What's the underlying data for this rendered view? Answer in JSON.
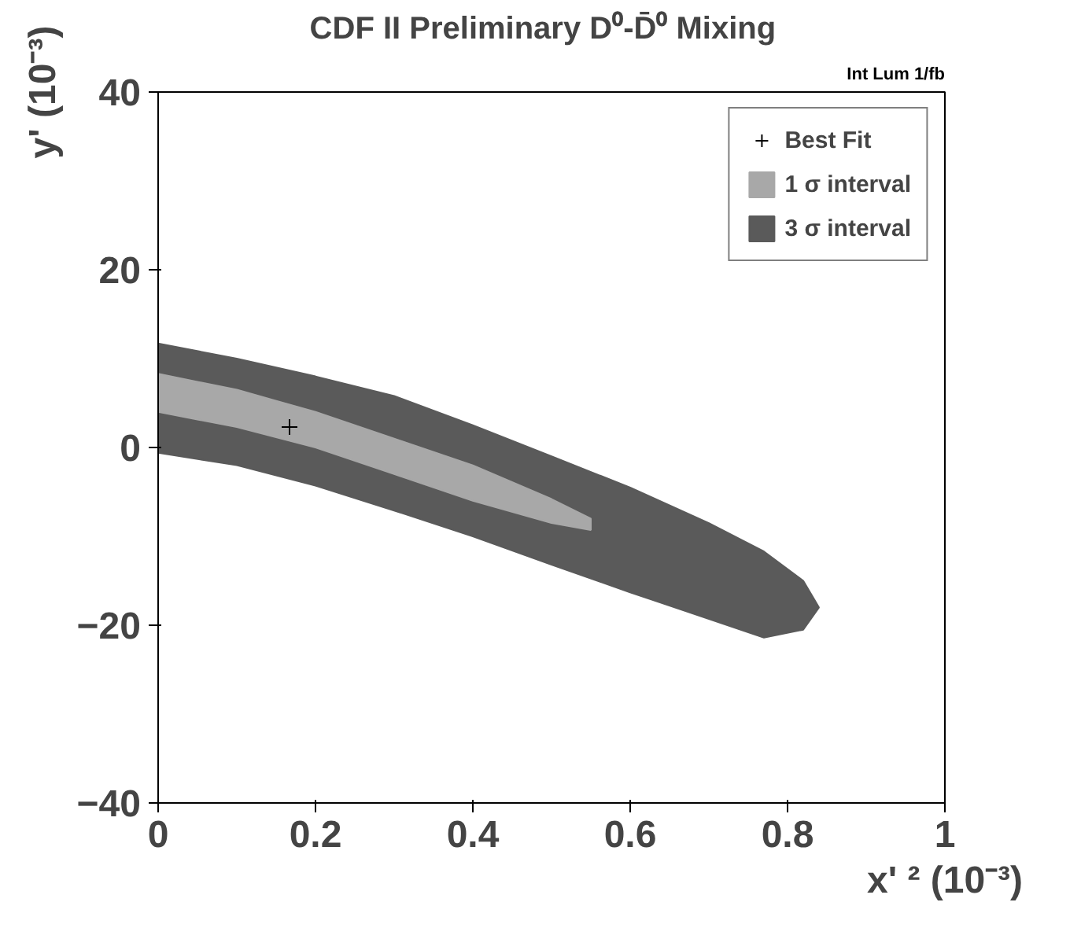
{
  "chart_data": {
    "type": "area",
    "title": "CDF II Preliminary   D⁰-D̄⁰ Mixing",
    "xlabel": "x' ² (10⁻³)",
    "ylabel": "y' (10⁻³)",
    "annotations": [
      "Int Lum 1/fb"
    ],
    "xlim": [
      0,
      1
    ],
    "ylim": [
      -40,
      40
    ],
    "xticks": [
      0,
      0.2,
      0.4,
      0.6,
      0.8,
      1
    ],
    "yticks": [
      -40,
      -20,
      0,
      20,
      40
    ],
    "grid": false,
    "legend": "top right",
    "series": [
      {
        "name": "3 σ interval",
        "color": "#5a5a5a",
        "x": [
          0,
          0.1,
          0.2,
          0.3,
          0.4,
          0.5,
          0.6,
          0.7,
          0.77,
          0.82,
          0.84,
          0.82,
          0.77,
          0.7,
          0.6,
          0.5,
          0.4,
          0.3,
          0.2,
          0.1,
          0
        ],
        "values": [
          11.7,
          10.0,
          8.0,
          5.8,
          2.5,
          -1.0,
          -4.5,
          -8.5,
          -11.7,
          -15,
          -18,
          -20.5,
          -21.4,
          -19.3,
          -16.3,
          -13.2,
          -10,
          -7.1,
          -4.3,
          -2.0,
          -0.6
        ]
      },
      {
        "name": "1 σ interval",
        "color": "#a8a8a8",
        "x": [
          0,
          0.1,
          0.2,
          0.3,
          0.4,
          0.5,
          0.55,
          0.55,
          0.5,
          0.4,
          0.3,
          0.2,
          0.1,
          0
        ],
        "values": [
          8.3,
          6.5,
          4,
          1,
          -2,
          -5.8,
          -8,
          -9.3,
          -8.5,
          -6,
          -3,
          0,
          2.3,
          4
        ]
      },
      {
        "name": "Best Fit",
        "type": "scatter",
        "marker": "cross",
        "color": "#000000",
        "x": [
          0.167
        ],
        "values": [
          2.3
        ]
      }
    ]
  }
}
